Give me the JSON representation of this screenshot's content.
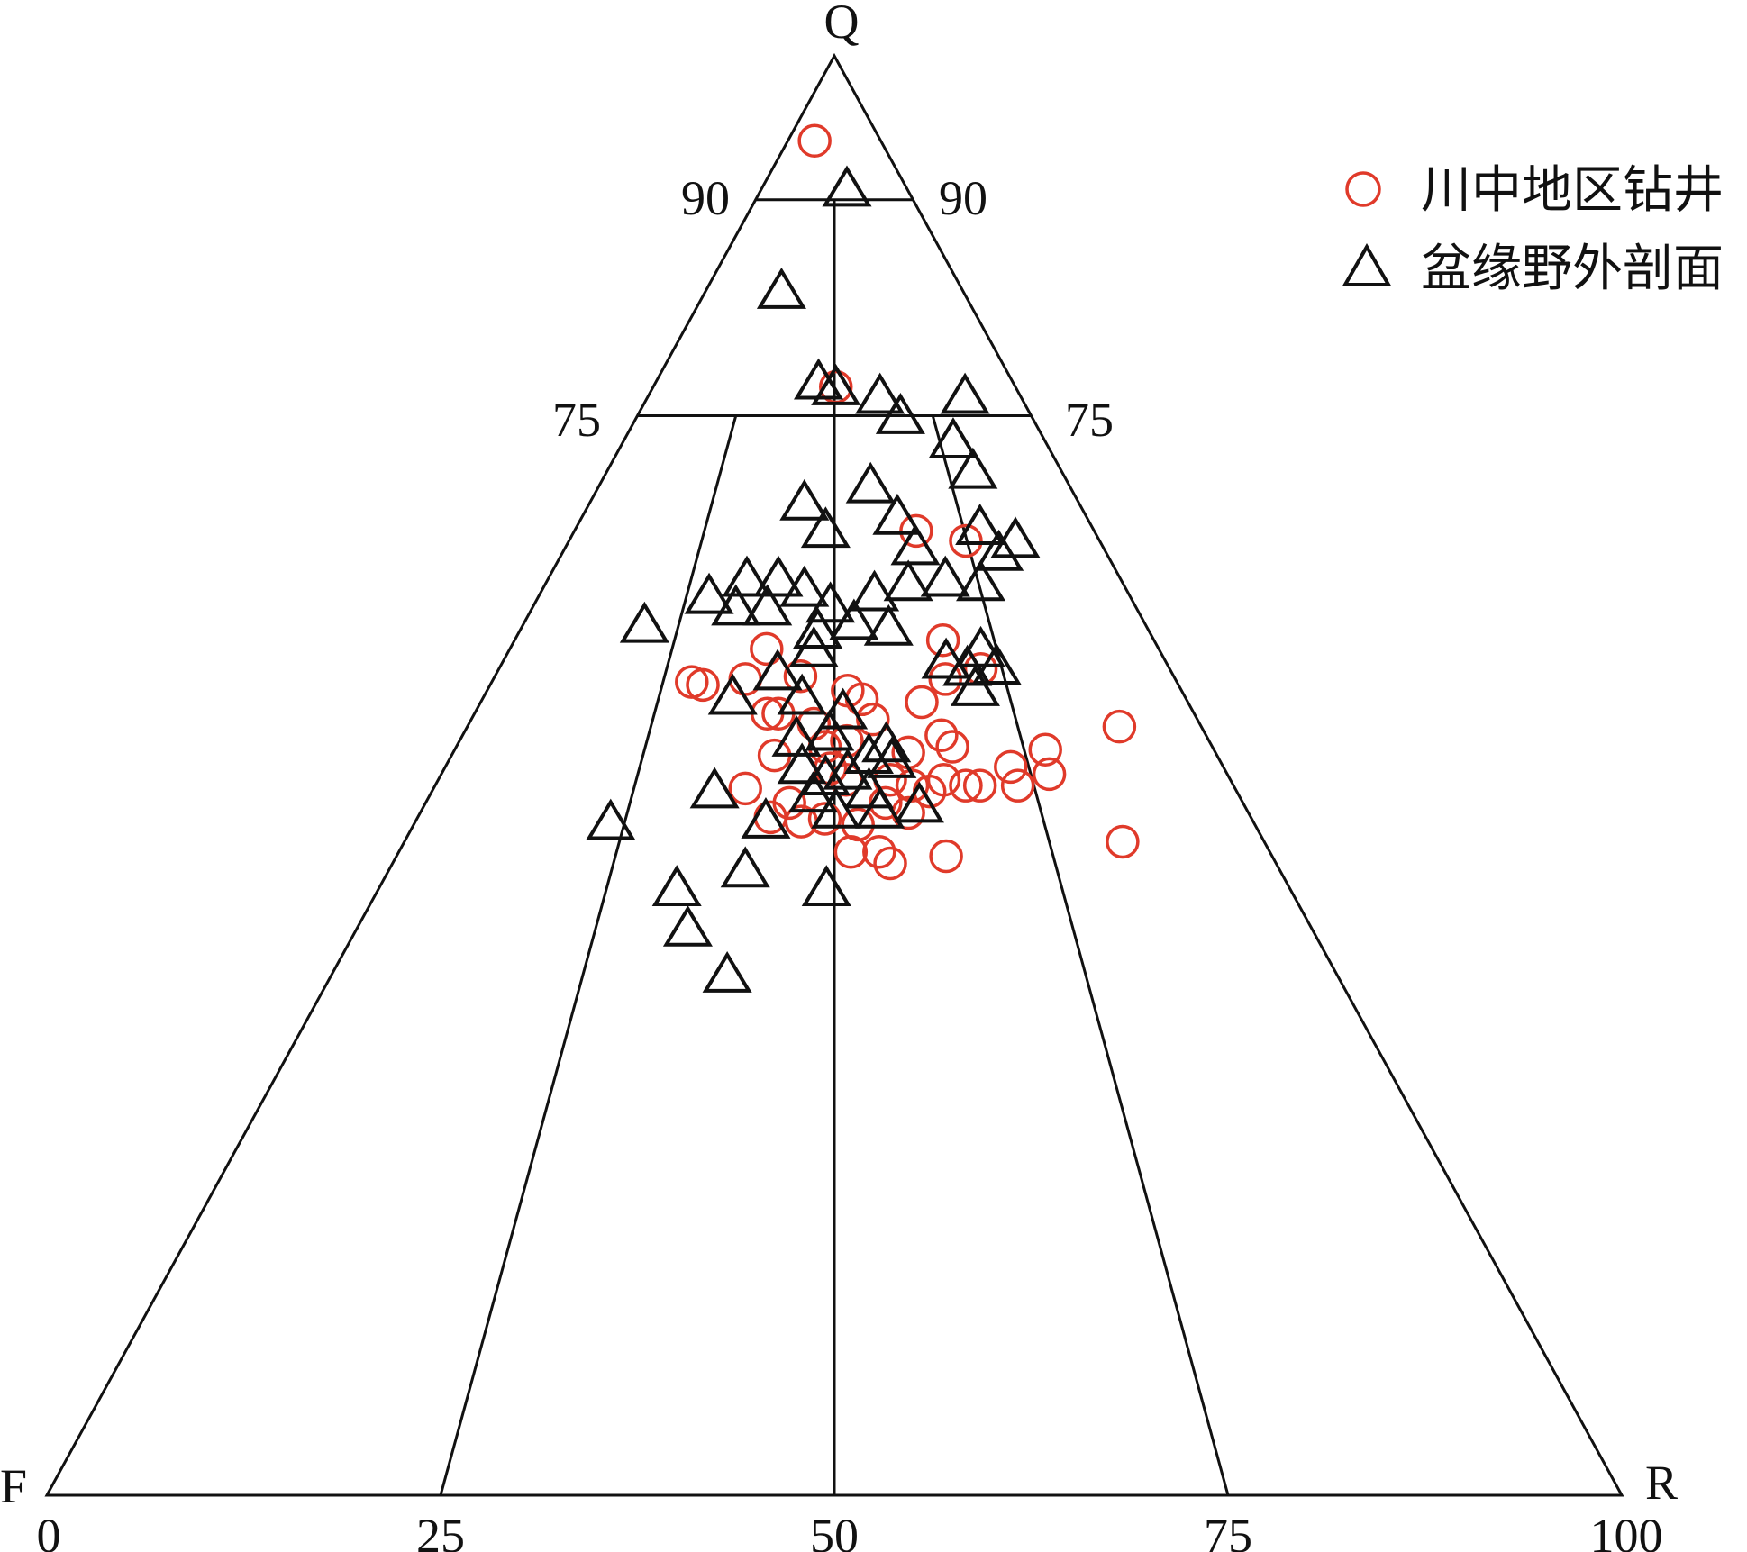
{
  "chart_data": {
    "type": "scatter",
    "subtype": "ternary",
    "vertex_labels": {
      "top": "Q",
      "left": "F",
      "right": "R"
    },
    "q_tick_labels": [
      "90",
      "75"
    ],
    "base_tick_labels": [
      "0",
      "25",
      "50",
      "75",
      "100"
    ],
    "field_boundaries": {
      "q_levels": [
        90,
        75
      ],
      "r_ratio_lines": [
        25,
        50,
        75
      ]
    },
    "point_order": [
      "Q",
      "F",
      "R"
    ],
    "legend_position": "top-right",
    "colors": {
      "axes": "#111111",
      "series_circle": "#e03a2a",
      "series_triangle": "#111111"
    },
    "series": [
      {
        "name": "川中地区钻井",
        "marker": "circle",
        "points": [
          [
            94.1,
            4.2,
            1.7
          ],
          [
            77.0,
            11.4,
            11.6
          ],
          [
            67.0,
            11.3,
            21.7
          ],
          [
            66.3,
            8.5,
            25.2
          ],
          [
            58.8,
            24.9,
            16.3
          ],
          [
            59.4,
            13.4,
            27.2
          ],
          [
            56.5,
            30.8,
            12.7
          ],
          [
            56.3,
            30.2,
            13.5
          ],
          [
            56.7,
            27.3,
            16.0
          ],
          [
            56.9,
            23.7,
            19.4
          ],
          [
            54.3,
            27.1,
            18.6
          ],
          [
            54.3,
            26.4,
            19.3
          ],
          [
            55.9,
            21.2,
            22.9
          ],
          [
            55.3,
            20.6,
            24.1
          ],
          [
            53.9,
            20.6,
            25.5
          ],
          [
            55.1,
            16.9,
            28.0
          ],
          [
            56.7,
            14.6,
            28.7
          ],
          [
            57.4,
            12.0,
            30.6
          ],
          [
            52.0,
            16.5,
            31.5
          ],
          [
            52.8,
            16.8,
            30.4
          ],
          [
            51.6,
            19.5,
            28.9
          ],
          [
            51.4,
            28.1,
            20.5
          ],
          [
            52.0,
            24.6,
            23.4
          ],
          [
            52.4,
            23.0,
            24.6
          ],
          [
            53.4,
            5.2,
            41.4
          ],
          [
            51.8,
            10.7,
            37.5
          ],
          [
            50.1,
            11.3,
            38.6
          ],
          [
            50.6,
            13.5,
            35.9
          ],
          [
            49.3,
            13.7,
            37.0
          ],
          [
            49.3,
            16.1,
            34.6
          ],
          [
            49.3,
            17.0,
            33.7
          ],
          [
            49.7,
            18.2,
            32.1
          ],
          [
            48.9,
            19.5,
            31.6
          ],
          [
            47.4,
            21.6,
            31.0
          ],
          [
            49.1,
            31.1,
            19.8
          ],
          [
            47.1,
            30.5,
            22.4
          ],
          [
            46.8,
            28.7,
            24.5
          ],
          [
            47.0,
            27.1,
            25.9
          ],
          [
            46.6,
            25.2,
            28.2
          ],
          [
            48.1,
            22.7,
            29.2
          ],
          [
            49.3,
            20.4,
            30.3
          ],
          [
            44.7,
            26.6,
            28.7
          ],
          [
            44.7,
            24.8,
            30.5
          ],
          [
            43.9,
            24.5,
            31.6
          ],
          [
            44.4,
            20.7,
            34.9
          ],
          [
            45.4,
            9.0,
            45.6
          ],
          [
            49.7,
            24.4,
            25.9
          ],
          [
            50.5,
            25.0,
            24.5
          ],
          [
            53.6,
            24.5,
            21.9
          ],
          [
            48.1,
            28.8,
            23.1
          ],
          [
            49.7,
            21.6,
            28.7
          ]
        ]
      },
      {
        "name": "盆缘野外剖面",
        "marker": "triangle",
        "points": [
          [
            90.6,
            3.9,
            5.5
          ],
          [
            83.5,
            11.6,
            4.9
          ],
          [
            77.2,
            12.4,
            10.4
          ],
          [
            76.8,
            11.5,
            11.7
          ],
          [
            76.2,
            9.0,
            14.8
          ],
          [
            74.8,
            8.4,
            16.8
          ],
          [
            76.2,
            3.6,
            20.2
          ],
          [
            73.1,
            5.9,
            21.0
          ],
          [
            71.0,
            5.7,
            23.3
          ],
          [
            68.8,
            17.5,
            13.7
          ],
          [
            70.0,
            12.7,
            17.3
          ],
          [
            66.9,
            17.1,
            16.0
          ],
          [
            67.8,
            12.1,
            20.1
          ],
          [
            65.7,
            12.0,
            22.3
          ],
          [
            67.1,
            7.2,
            25.7
          ],
          [
            66.2,
            5.4,
            28.4
          ],
          [
            65.3,
            6.9,
            27.8
          ],
          [
            63.2,
            9.1,
            27.7
          ],
          [
            63.5,
            11.2,
            25.3
          ],
          [
            63.2,
            13.7,
            23.1
          ],
          [
            62.5,
            16.2,
            21.3
          ],
          [
            63.5,
            23.8,
            12.7
          ],
          [
            63.5,
            21.8,
            14.7
          ],
          [
            62.8,
            20.5,
            16.7
          ],
          [
            62.3,
            26.8,
            10.9
          ],
          [
            61.5,
            25.5,
            13.0
          ],
          [
            61.5,
            23.5,
            15.0
          ],
          [
            61.7,
            19.4,
            18.9
          ],
          [
            60.5,
            18.5,
            21.0
          ],
          [
            60.1,
            16.5,
            23.4
          ],
          [
            60.3,
            31.9,
            7.8
          ],
          [
            59.9,
            21.1,
            19.0
          ],
          [
            58.6,
            22.0,
            19.4
          ],
          [
            58.6,
            11.4,
            30.0
          ],
          [
            57.8,
            14.0,
            28.2
          ],
          [
            57.4,
            11.0,
            31.6
          ],
          [
            57.3,
            12.9,
            29.8
          ],
          [
            55.9,
            13.1,
            31.0
          ],
          [
            57.0,
            25.1,
            17.9
          ],
          [
            55.3,
            28.8,
            15.9
          ],
          [
            55.3,
            24.4,
            20.3
          ],
          [
            54.3,
            22.3,
            23.4
          ],
          [
            52.8,
            23.9,
            23.3
          ],
          [
            52.4,
            26.2,
            21.4
          ],
          [
            52.0,
            20.7,
            27.3
          ],
          [
            51.2,
            22.2,
            26.6
          ],
          [
            50.5,
            26.8,
            22.7
          ],
          [
            49.7,
            25.7,
            24.6
          ],
          [
            50.1,
            24.1,
            25.8
          ],
          [
            50.9,
            20.9,
            28.2
          ],
          [
            48.8,
            33.2,
            18.0
          ],
          [
            48.5,
            27.1,
            24.4
          ],
          [
            48.8,
            23.4,
            27.8
          ],
          [
            47.8,
            20.7,
            31.5
          ],
          [
            47.4,
            23.4,
            29.2
          ],
          [
            47.4,
            26.2,
            26.4
          ],
          [
            46.7,
            31.0,
            22.3
          ],
          [
            46.6,
            40.9,
            12.5
          ],
          [
            43.3,
            34.0,
            22.7
          ],
          [
            42.0,
            39.0,
            19.0
          ],
          [
            42.0,
            29.5,
            28.5
          ],
          [
            39.2,
            39.7,
            21.1
          ],
          [
            36.0,
            38.8,
            25.2
          ]
        ]
      }
    ]
  }
}
